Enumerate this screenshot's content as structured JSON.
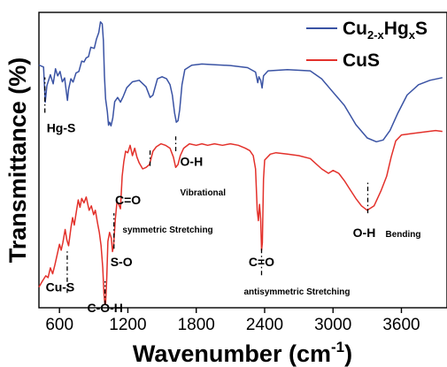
{
  "chart_data": {
    "type": "line",
    "xlabel": "Wavenumber (cm",
    "xlabel_sup": "-1",
    "xlabel_close": ")",
    "ylabel": "Transmittance (%)",
    "xlim": [
      420,
      4000
    ],
    "ylim": [
      0,
      100
    ],
    "xticks": [
      600,
      1200,
      1800,
      2400,
      3000,
      3600
    ],
    "grid": false,
    "legend_position": "top-right",
    "series": [
      {
        "name_main": "Cu",
        "name_sub1": "2-x",
        "name_mid": "Hg",
        "name_sub2": "x",
        "name_end": "S",
        "color": "#3a53a4",
        "points": [
          [
            420,
            82.2
          ],
          [
            460,
            81.5
          ],
          [
            475,
            69.6
          ],
          [
            490,
            75.2
          ],
          [
            520,
            78.9
          ],
          [
            545,
            75.8
          ],
          [
            565,
            80.9
          ],
          [
            585,
            78.5
          ],
          [
            605,
            80.0
          ],
          [
            625,
            76.5
          ],
          [
            645,
            77.8
          ],
          [
            660,
            73.2
          ],
          [
            670,
            70.2
          ],
          [
            680,
            74.0
          ],
          [
            700,
            77.5
          ],
          [
            720,
            76.4
          ],
          [
            745,
            79.5
          ],
          [
            770,
            80.0
          ],
          [
            795,
            83.5
          ],
          [
            815,
            83.2
          ],
          [
            835,
            84.6
          ],
          [
            855,
            85.0
          ],
          [
            875,
            88.2
          ],
          [
            905,
            87.8
          ],
          [
            925,
            91.0
          ],
          [
            945,
            93.2
          ],
          [
            960,
            96.8
          ],
          [
            975,
            96.1
          ],
          [
            985,
            90.5
          ],
          [
            995,
            78.5
          ],
          [
            1005,
            70.7
          ],
          [
            1020,
            66.3
          ],
          [
            1030,
            61.8
          ],
          [
            1040,
            62.8
          ],
          [
            1052,
            61.6
          ],
          [
            1068,
            64.2
          ],
          [
            1085,
            69.8
          ],
          [
            1110,
            71.2
          ],
          [
            1135,
            69.6
          ],
          [
            1160,
            71.6
          ],
          [
            1190,
            74.5
          ],
          [
            1240,
            76.5
          ],
          [
            1300,
            77.0
          ],
          [
            1360,
            74.8
          ],
          [
            1395,
            71.2
          ],
          [
            1420,
            72.0
          ],
          [
            1460,
            77.5
          ],
          [
            1500,
            78.2
          ],
          [
            1540,
            77.5
          ],
          [
            1570,
            75.5
          ],
          [
            1590,
            72.0
          ],
          [
            1610,
            66.0
          ],
          [
            1625,
            62.8
          ],
          [
            1640,
            63.3
          ],
          [
            1655,
            67.0
          ],
          [
            1675,
            75.5
          ],
          [
            1700,
            80.6
          ],
          [
            1760,
            82.1
          ],
          [
            1850,
            82.5
          ],
          [
            1950,
            82.3
          ],
          [
            2100,
            82.0
          ],
          [
            2250,
            81.3
          ],
          [
            2320,
            79.8
          ],
          [
            2340,
            76.2
          ],
          [
            2350,
            78.2
          ],
          [
            2365,
            77.0
          ],
          [
            2378,
            74.4
          ],
          [
            2390,
            78.5
          ],
          [
            2430,
            80.2
          ],
          [
            2600,
            80.6
          ],
          [
            2800,
            80.2
          ],
          [
            2900,
            77.5
          ],
          [
            3000,
            73.0
          ],
          [
            3100,
            68.5
          ],
          [
            3200,
            62.0
          ],
          [
            3300,
            57.5
          ],
          [
            3380,
            56.2
          ],
          [
            3440,
            56.8
          ],
          [
            3500,
            60.0
          ],
          [
            3570,
            66.0
          ],
          [
            3650,
            72.0
          ],
          [
            3750,
            75.5
          ],
          [
            3850,
            77.0
          ],
          [
            3960,
            77.9
          ]
        ]
      },
      {
        "name": "CuS",
        "color": "#e3312b",
        "points": [
          [
            420,
            7.0
          ],
          [
            450,
            9.0
          ],
          [
            480,
            10.8
          ],
          [
            500,
            10.2
          ],
          [
            520,
            13.5
          ],
          [
            540,
            11.5
          ],
          [
            560,
            14.5
          ],
          [
            580,
            18.0
          ],
          [
            600,
            21.5
          ],
          [
            615,
            19.5
          ],
          [
            630,
            22.0
          ],
          [
            650,
            26.5
          ],
          [
            665,
            23.0
          ],
          [
            680,
            21.0
          ],
          [
            700,
            27.0
          ],
          [
            715,
            30.5
          ],
          [
            730,
            28.0
          ],
          [
            750,
            33.0
          ],
          [
            765,
            36.5
          ],
          [
            780,
            34.0
          ],
          [
            795,
            37.0
          ],
          [
            815,
            35.5
          ],
          [
            835,
            37.5
          ],
          [
            860,
            33.0
          ],
          [
            880,
            34.5
          ],
          [
            900,
            31.5
          ],
          [
            915,
            33.0
          ],
          [
            935,
            28.5
          ],
          [
            950,
            25.5
          ],
          [
            965,
            21.0
          ],
          [
            980,
            13.5
          ],
          [
            990,
            5.0
          ],
          [
            998,
            1.2
          ],
          [
            1005,
            1.5
          ],
          [
            1015,
            10.0
          ],
          [
            1025,
            22.5
          ],
          [
            1040,
            25.5
          ],
          [
            1055,
            23.5
          ],
          [
            1065,
            19.0
          ],
          [
            1075,
            21.0
          ],
          [
            1090,
            30.0
          ],
          [
            1105,
            36.0
          ],
          [
            1120,
            35.0
          ],
          [
            1135,
            33.5
          ],
          [
            1150,
            44.5
          ],
          [
            1165,
            49.5
          ],
          [
            1180,
            53.0
          ],
          [
            1200,
            52.5
          ],
          [
            1220,
            55.0
          ],
          [
            1240,
            51.5
          ],
          [
            1260,
            54.0
          ],
          [
            1280,
            51.0
          ],
          [
            1300,
            49.0
          ],
          [
            1330,
            47.0
          ],
          [
            1360,
            47.5
          ],
          [
            1390,
            48.5
          ],
          [
            1420,
            53.0
          ],
          [
            1450,
            54.5
          ],
          [
            1490,
            55.5
          ],
          [
            1530,
            55.0
          ],
          [
            1570,
            54.0
          ],
          [
            1600,
            51.0
          ],
          [
            1620,
            47.5
          ],
          [
            1640,
            48.5
          ],
          [
            1660,
            51.5
          ],
          [
            1690,
            54.0
          ],
          [
            1740,
            55.5
          ],
          [
            1800,
            55.0
          ],
          [
            1850,
            55.5
          ],
          [
            1900,
            55.0
          ],
          [
            1960,
            55.5
          ],
          [
            2030,
            55.0
          ],
          [
            2100,
            55.5
          ],
          [
            2170,
            55.0
          ],
          [
            2230,
            54.0
          ],
          [
            2270,
            53.2
          ],
          [
            2300,
            51.5
          ],
          [
            2320,
            47.0
          ],
          [
            2335,
            33.0
          ],
          [
            2345,
            29.5
          ],
          [
            2355,
            35.0
          ],
          [
            2365,
            30.0
          ],
          [
            2373,
            19.5
          ],
          [
            2380,
            22.0
          ],
          [
            2390,
            43.5
          ],
          [
            2400,
            50.0
          ],
          [
            2450,
            52.0
          ],
          [
            2500,
            52.5
          ],
          [
            2600,
            52.0
          ],
          [
            2700,
            51.5
          ],
          [
            2800,
            50.5
          ],
          [
            2900,
            47.0
          ],
          [
            2960,
            45.5
          ],
          [
            3000,
            46.5
          ],
          [
            3050,
            45.5
          ],
          [
            3100,
            43.0
          ],
          [
            3150,
            40.0
          ],
          [
            3200,
            37.0
          ],
          [
            3250,
            34.5
          ],
          [
            3300,
            33.0
          ],
          [
            3360,
            34.5
          ],
          [
            3420,
            39.5
          ],
          [
            3470,
            44.5
          ],
          [
            3510,
            51.0
          ],
          [
            3550,
            56.5
          ],
          [
            3600,
            58.5
          ],
          [
            3700,
            59.0
          ],
          [
            3800,
            59.5
          ],
          [
            3900,
            60.0
          ],
          [
            3960,
            59.7
          ]
        ]
      }
    ],
    "annotations": [
      {
        "text": "Hg-S",
        "x": 472,
        "line_y": [
          66,
          78
        ],
        "label_y": 59.5,
        "anchor": "start",
        "dx": 2,
        "size": 14
      },
      {
        "text": "Cu-S",
        "x": 668,
        "line_y": [
          5,
          20
        ],
        "label_y": 5.5,
        "anchor": "middle",
        "dx": -8,
        "size": 14
      },
      {
        "text": "C-O-H",
        "x": 1000,
        "line_y": [
          1,
          9
        ],
        "label_y": -1.5,
        "anchor": "middle",
        "dx": 0,
        "size": 14
      },
      {
        "text": "S-O",
        "x": 1078,
        "line_y": [
          20,
          32
        ],
        "label_y": 14,
        "anchor": "start",
        "dx": -4,
        "size": 14
      },
      {
        "text": "C=O",
        "x": 1395,
        "line_y": [
          48,
          54
        ],
        "label_y": 35,
        "anchor": "middle",
        "dx": -25,
        "size": 14
      },
      {
        "text": "symmetric Stretching",
        "x": 1395,
        "line_y": null,
        "label_y": 25.5,
        "anchor": "middle",
        "dx": 20,
        "size": 10
      },
      {
        "text": "O-H",
        "x": 1620,
        "line_y": [
          53,
          58
        ],
        "label_y": 48,
        "anchor": "start",
        "dx": 5,
        "size": 14
      },
      {
        "text": "Vibrational",
        "x": 1620,
        "line_y": null,
        "label_y": 38,
        "anchor": "start",
        "dx": 5,
        "size": 10
      },
      {
        "text": "C=O",
        "x": 2373,
        "line_y": [
          11,
          20
        ],
        "label_y": 14,
        "anchor": "middle",
        "dx": 0,
        "size": 14
      },
      {
        "text": "antisymmetric Stretching",
        "x": 2373,
        "line_y": null,
        "label_y": 4.5,
        "anchor": "start",
        "dx": -20,
        "size": 10
      },
      {
        "text": "O-H",
        "x": 3305,
        "line_y": [
          32,
          43
        ],
        "label_y": 24,
        "anchor": "middle",
        "dx": -4,
        "size": 14
      },
      {
        "text": "Bending",
        "x": 3305,
        "line_y": null,
        "label_y": 24,
        "anchor": "start",
        "dx": 20,
        "size": 10
      }
    ]
  }
}
